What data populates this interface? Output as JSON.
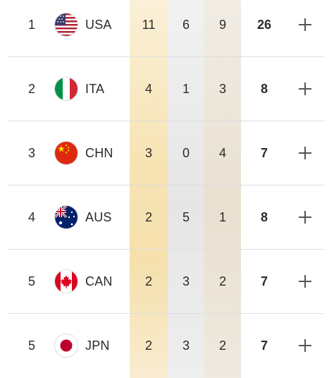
{
  "colors": {
    "gold_column": "#f7e3b3",
    "silver_column": "#e6e6e6",
    "bronze_column": "#e9e0d1",
    "separator": "#dedede",
    "text": "#2b2b2b"
  },
  "rows": [
    {
      "rank": "1",
      "code": "USA",
      "flag_icon": "usa-flag-icon",
      "gold": "11",
      "silver": "6",
      "bronze": "9",
      "total": "26",
      "expand_icon": "plus-icon"
    },
    {
      "rank": "2",
      "code": "ITA",
      "flag_icon": "italy-flag-icon",
      "gold": "4",
      "silver": "1",
      "bronze": "3",
      "total": "8",
      "expand_icon": "plus-icon"
    },
    {
      "rank": "3",
      "code": "CHN",
      "flag_icon": "china-flag-icon",
      "gold": "3",
      "silver": "0",
      "bronze": "4",
      "total": "7",
      "expand_icon": "plus-icon"
    },
    {
      "rank": "4",
      "code": "AUS",
      "flag_icon": "australia-flag-icon",
      "gold": "2",
      "silver": "5",
      "bronze": "1",
      "total": "8",
      "expand_icon": "plus-icon"
    },
    {
      "rank": "5",
      "code": "CAN",
      "flag_icon": "canada-flag-icon",
      "gold": "2",
      "silver": "3",
      "bronze": "2",
      "total": "7",
      "expand_icon": "plus-icon"
    },
    {
      "rank": "5",
      "code": "JPN",
      "flag_icon": "japan-flag-icon",
      "gold": "2",
      "silver": "3",
      "bronze": "2",
      "total": "7",
      "expand_icon": "plus-icon"
    }
  ]
}
